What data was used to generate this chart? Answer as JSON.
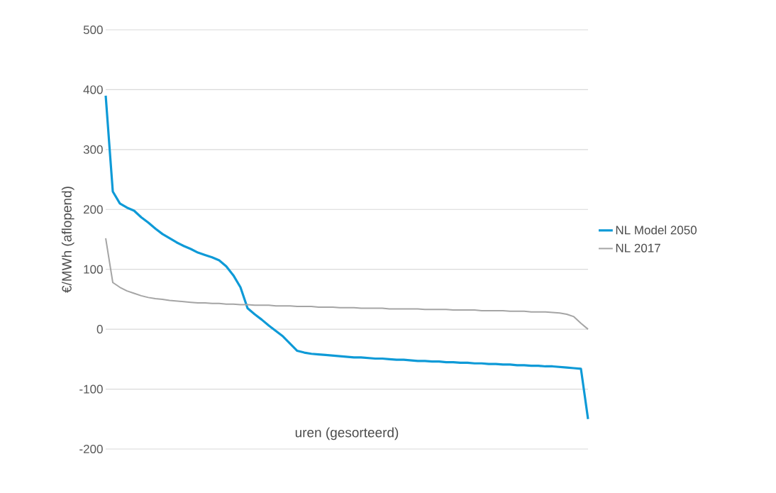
{
  "chart_data": {
    "type": "line",
    "xlabel": "uren (gesorteerd)",
    "ylabel": "€/MWh (aflopend)",
    "categories": [
      null,
      null,
      null,
      null,
      null,
      null,
      null,
      null,
      null,
      null,
      null,
      null,
      null,
      null,
      null,
      null,
      null,
      null,
      null,
      null,
      null,
      null,
      null,
      null,
      null,
      null,
      null,
      null,
      null,
      null,
      null,
      null,
      null,
      null,
      null,
      null,
      null,
      null,
      null,
      null,
      null,
      null,
      null,
      null,
      null,
      null,
      null,
      null,
      null,
      null,
      null,
      null,
      null,
      null,
      null,
      null,
      null,
      null,
      null,
      null,
      null,
      null,
      null,
      null,
      null,
      null,
      null,
      null,
      null
    ],
    "series": [
      {
        "name": "NL Model 2050",
        "color": "#0e9ad7",
        "values": [
          390,
          230,
          210,
          203,
          198,
          187,
          178,
          168,
          159,
          152,
          145,
          139,
          134,
          128,
          124,
          120,
          115,
          105,
          90,
          70,
          35,
          25,
          16,
          6,
          -3,
          -12,
          -24,
          -36,
          -39,
          -41,
          -42,
          -43,
          -44,
          -45,
          -46,
          -47,
          -47,
          -48,
          -49,
          -49,
          -50,
          -51,
          -51,
          -52,
          -53,
          -53,
          -54,
          -54,
          -55,
          -55,
          -56,
          -56,
          -57,
          -57,
          -58,
          -58,
          -59,
          -59,
          -60,
          -60,
          -61,
          -61,
          -62,
          -62,
          -63,
          -64,
          -65,
          -66,
          -150
        ]
      },
      {
        "name": "NL 2017",
        "color": "#a5a5a5",
        "values": [
          152,
          78,
          70,
          64,
          60,
          56,
          53,
          51,
          50,
          48,
          47,
          46,
          45,
          44,
          44,
          43,
          43,
          42,
          42,
          41,
          41,
          40,
          40,
          40,
          39,
          39,
          39,
          38,
          38,
          38,
          37,
          37,
          37,
          36,
          36,
          36,
          35,
          35,
          35,
          35,
          34,
          34,
          34,
          34,
          34,
          33,
          33,
          33,
          33,
          32,
          32,
          32,
          32,
          31,
          31,
          31,
          31,
          30,
          30,
          30,
          29,
          29,
          29,
          28,
          27,
          25,
          21,
          10,
          0
        ]
      }
    ],
    "ylim": [
      -200,
      500
    ],
    "yticks": [
      -200,
      -100,
      0,
      100,
      200,
      300,
      400,
      500
    ],
    "grid": "y",
    "legend": "right",
    "tick_labels": "y"
  }
}
